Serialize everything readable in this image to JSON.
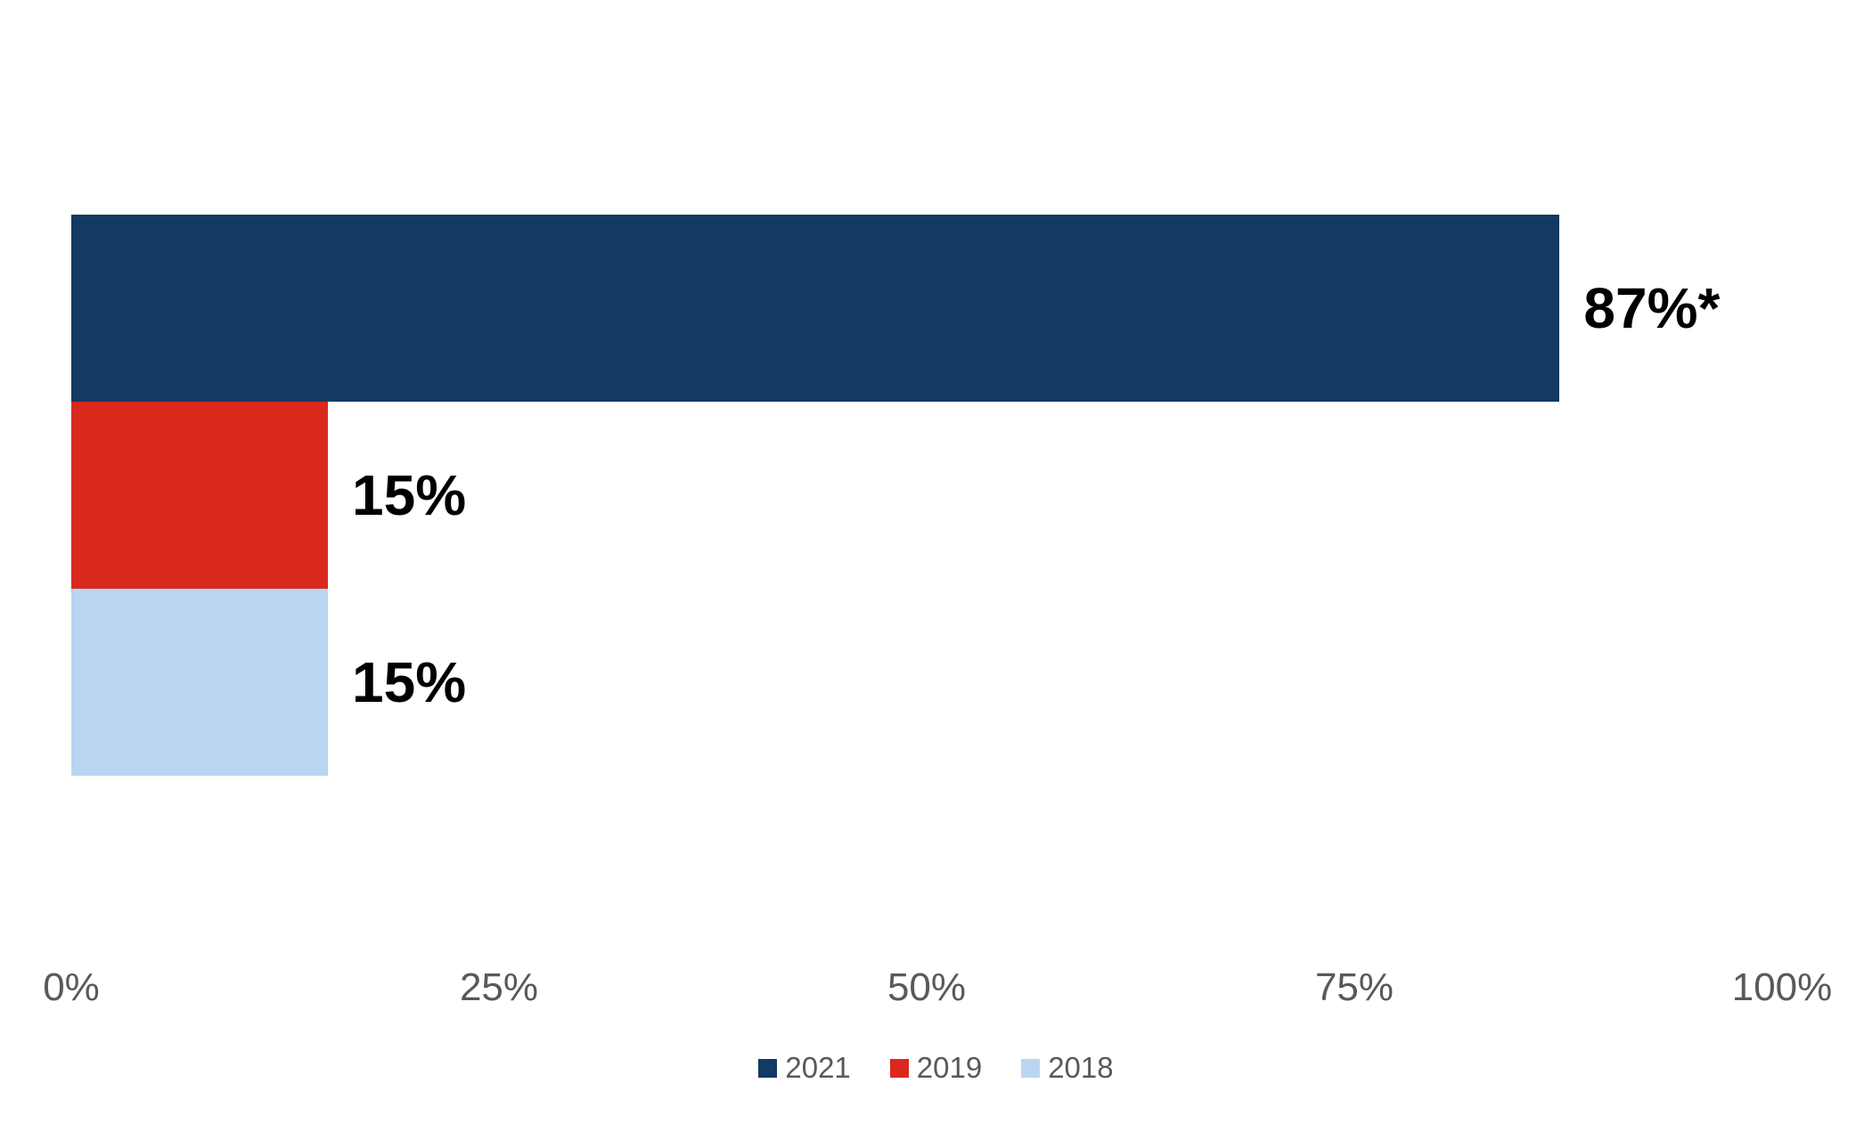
{
  "chart_data": {
    "type": "bar",
    "orientation": "horizontal",
    "title": "",
    "xlabel": "",
    "ylabel": "",
    "categories": [
      "2021",
      "2019",
      "2018"
    ],
    "values": [
      87,
      15,
      15
    ],
    "value_labels": [
      "87%*",
      "15%",
      "15%"
    ],
    "series_colors": [
      "#123A63",
      "#D9291C",
      "#B9D5F1"
    ],
    "xlim": [
      0,
      100
    ],
    "x_ticks": [
      {
        "value": 0,
        "label": "0%"
      },
      {
        "value": 25,
        "label": "25%"
      },
      {
        "value": 50,
        "label": "50%"
      },
      {
        "value": 75,
        "label": "75%"
      },
      {
        "value": 100,
        "label": "100%"
      }
    ],
    "gridlines": false,
    "legend": {
      "position": "bottom",
      "entries": [
        {
          "label": "2021",
          "color": "#123A63"
        },
        {
          "label": "2019",
          "color": "#D9291C"
        },
        {
          "label": "2018",
          "color": "#B9D5F1"
        }
      ]
    }
  },
  "styles": {
    "background": "#FFFFFF",
    "data_label_color": "#000000",
    "axis_text_color": "#595959",
    "legend_text_color": "#595959"
  }
}
